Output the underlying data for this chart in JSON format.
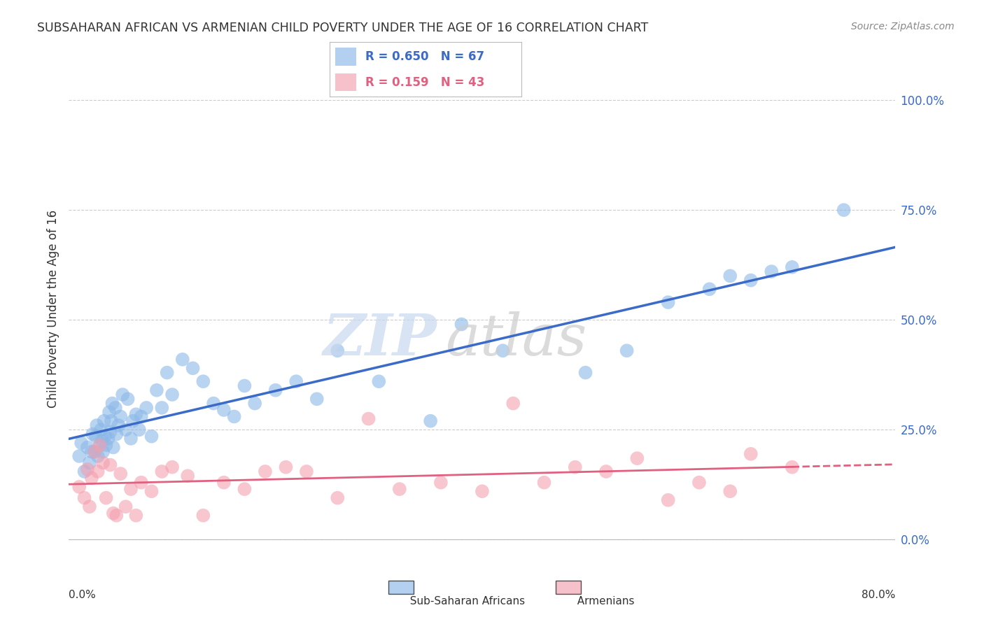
{
  "title": "SUBSAHARAN AFRICAN VS ARMENIAN CHILD POVERTY UNDER THE AGE OF 16 CORRELATION CHART",
  "source": "Source: ZipAtlas.com",
  "ylabel": "Child Poverty Under the Age of 16",
  "ytick_labels": [
    "0.0%",
    "25.0%",
    "50.0%",
    "75.0%",
    "100.0%"
  ],
  "ytick_values": [
    0.0,
    0.25,
    0.5,
    0.75,
    1.0
  ],
  "xlim": [
    0.0,
    0.8
  ],
  "ylim": [
    -0.05,
    1.1
  ],
  "legend_label1": "Sub-Saharan Africans",
  "legend_label2": "Armenians",
  "R1": "0.650",
  "N1": "67",
  "R2": "0.159",
  "N2": "43",
  "blue_color": "#8BB8E8",
  "pink_color": "#F4A0B0",
  "blue_line_color": "#3B6BC8",
  "pink_line_color": "#E06080",
  "background_color": "#FFFFFF",
  "blue_scatter_x": [
    0.01,
    0.012,
    0.015,
    0.018,
    0.02,
    0.022,
    0.023,
    0.025,
    0.026,
    0.027,
    0.028,
    0.03,
    0.031,
    0.032,
    0.033,
    0.034,
    0.035,
    0.036,
    0.038,
    0.039,
    0.04,
    0.041,
    0.042,
    0.043,
    0.045,
    0.046,
    0.048,
    0.05,
    0.052,
    0.055,
    0.057,
    0.06,
    0.062,
    0.065,
    0.068,
    0.07,
    0.075,
    0.08,
    0.085,
    0.09,
    0.095,
    0.1,
    0.11,
    0.12,
    0.13,
    0.14,
    0.15,
    0.16,
    0.17,
    0.18,
    0.2,
    0.22,
    0.24,
    0.26,
    0.3,
    0.35,
    0.38,
    0.42,
    0.5,
    0.54,
    0.58,
    0.62,
    0.64,
    0.66,
    0.68,
    0.7,
    0.75
  ],
  "blue_scatter_y": [
    0.19,
    0.22,
    0.155,
    0.21,
    0.175,
    0.2,
    0.24,
    0.2,
    0.235,
    0.26,
    0.19,
    0.215,
    0.25,
    0.225,
    0.2,
    0.27,
    0.235,
    0.215,
    0.23,
    0.29,
    0.245,
    0.27,
    0.31,
    0.21,
    0.3,
    0.24,
    0.26,
    0.28,
    0.33,
    0.25,
    0.32,
    0.23,
    0.27,
    0.285,
    0.25,
    0.28,
    0.3,
    0.235,
    0.34,
    0.3,
    0.38,
    0.33,
    0.41,
    0.39,
    0.36,
    0.31,
    0.295,
    0.28,
    0.35,
    0.31,
    0.34,
    0.36,
    0.32,
    0.43,
    0.36,
    0.27,
    0.49,
    0.43,
    0.38,
    0.43,
    0.54,
    0.57,
    0.6,
    0.59,
    0.61,
    0.62,
    0.75
  ],
  "pink_scatter_x": [
    0.01,
    0.015,
    0.018,
    0.02,
    0.022,
    0.025,
    0.028,
    0.03,
    0.033,
    0.036,
    0.04,
    0.043,
    0.046,
    0.05,
    0.055,
    0.06,
    0.065,
    0.07,
    0.08,
    0.09,
    0.1,
    0.115,
    0.13,
    0.15,
    0.17,
    0.19,
    0.21,
    0.23,
    0.26,
    0.29,
    0.32,
    0.36,
    0.4,
    0.43,
    0.46,
    0.49,
    0.52,
    0.55,
    0.58,
    0.61,
    0.64,
    0.66,
    0.7
  ],
  "pink_scatter_y": [
    0.12,
    0.095,
    0.16,
    0.075,
    0.14,
    0.2,
    0.155,
    0.215,
    0.175,
    0.095,
    0.17,
    0.06,
    0.055,
    0.15,
    0.075,
    0.115,
    0.055,
    0.13,
    0.11,
    0.155,
    0.165,
    0.145,
    0.055,
    0.13,
    0.115,
    0.155,
    0.165,
    0.155,
    0.095,
    0.275,
    0.115,
    0.13,
    0.11,
    0.31,
    0.13,
    0.165,
    0.155,
    0.185,
    0.09,
    0.13,
    0.11,
    0.195,
    0.165
  ]
}
